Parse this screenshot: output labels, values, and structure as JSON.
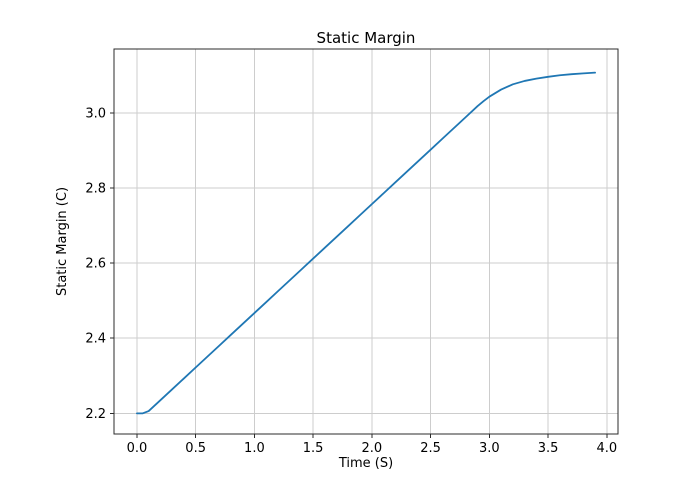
{
  "figure": {
    "background": "#ffffff"
  },
  "chart_data": {
    "type": "line",
    "title": "Static Margin",
    "xlabel": "Time (S)",
    "ylabel": "Static Margin (C)",
    "grid": true,
    "legend_position": "none",
    "xlim": [
      -0.195,
      4.095
    ],
    "ylim": [
      2.145,
      3.17
    ],
    "xticks": {
      "values": [
        0.0,
        0.5,
        1.0,
        1.5,
        2.0,
        2.5,
        3.0,
        3.5,
        4.0
      ],
      "labels": [
        "0.0",
        "0.5",
        "1.0",
        "1.5",
        "2.0",
        "2.5",
        "3.0",
        "3.5",
        "4.0"
      ]
    },
    "yticks": {
      "values": [
        2.2,
        2.4,
        2.6,
        2.8,
        3.0
      ],
      "labels": [
        "2.2",
        "2.4",
        "2.6",
        "2.8",
        "3.0"
      ]
    },
    "series": [
      {
        "name": "static-margin",
        "color": "#1f77b4",
        "x": [
          0.0,
          0.05,
          0.1,
          0.2,
          0.3,
          0.4,
          0.5,
          0.6,
          0.7,
          0.8,
          0.9,
          1.0,
          1.1,
          1.2,
          1.3,
          1.4,
          1.5,
          1.6,
          1.7,
          1.8,
          1.9,
          2.0,
          2.1,
          2.2,
          2.3,
          2.4,
          2.5,
          2.6,
          2.7,
          2.8,
          2.9,
          2.95,
          3.0,
          3.1,
          3.2,
          3.3,
          3.4,
          3.5,
          3.6,
          3.7,
          3.8,
          3.9
        ],
        "y": [
          2.2,
          2.2,
          2.206,
          2.235,
          2.264,
          2.293,
          2.322,
          2.351,
          2.38,
          2.409,
          2.438,
          2.467,
          2.496,
          2.525,
          2.554,
          2.583,
          2.612,
          2.641,
          2.67,
          2.699,
          2.728,
          2.757,
          2.786,
          2.815,
          2.844,
          2.873,
          2.902,
          2.931,
          2.96,
          2.989,
          3.018,
          3.031,
          3.043,
          3.062,
          3.076,
          3.085,
          3.091,
          3.096,
          3.1,
          3.103,
          3.105,
          3.107
        ]
      }
    ],
    "colors": {
      "line": "#1f77b4",
      "grid": "#cdcdcd",
      "spine": "#2b2b2b",
      "tick": "#2b2b2b",
      "text": "#000000",
      "background": "#ffffff"
    }
  }
}
